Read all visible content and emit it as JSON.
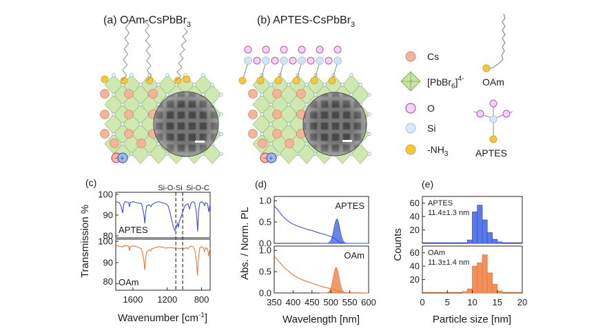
{
  "top": {
    "panel_a_title": "(a) OAm-CsPbBr",
    "panel_a_sub": "3",
    "panel_b_title": "(b) APTES-CsPbBr",
    "panel_b_sub": "3"
  },
  "legend": {
    "cs": "Cs",
    "pbbr_main": "[PbBr",
    "pbbr_sub": "6",
    "pbbr_close": "]",
    "pbbr_sup": "4-",
    "o": "O",
    "si": "Si",
    "nh3_main": "-NH",
    "nh3_sub": "3",
    "oam": "OAm",
    "aptes": "APTES"
  },
  "colors": {
    "blue": "#3b4fd8",
    "orange": "#e8773a",
    "blue_fill": "#5b79e8",
    "orange_fill": "#f0905a",
    "cs_atom": "#f2b49a",
    "octahedron": "#c7e3a3",
    "o_atom": "#e7a6e0",
    "si_atom": "#cfe4f2",
    "n_atom": "#f6c640"
  },
  "chart_data": [
    {
      "type": "line",
      "panel": "(c)",
      "xlabel_main": "Wavenumber [cm",
      "xlabel_sup": "-1",
      "xlabel_close": "]",
      "ylabel": "Transmission %",
      "x_reversed": true,
      "xlim": [
        1800,
        700
      ],
      "xticks": [
        1600,
        1200,
        800
      ],
      "xtick_labels": [
        "1600",
        "1200",
        "800"
      ],
      "annotations": [
        "Si-O-Si",
        "Si-O-C"
      ],
      "annotation_x": [
        1100,
        1020
      ],
      "series": [
        {
          "name": "APTES",
          "color": "#3b4fd8",
          "ylim": [
            79,
            101
          ],
          "yticks": [
            "100",
            "90",
            "80"
          ],
          "ytick_values": [
            100,
            90,
            80
          ],
          "points": [
            [
              1800,
              96.5
            ],
            [
              1760,
              96.0
            ],
            [
              1740,
              94.5
            ],
            [
              1720,
              91.0
            ],
            [
              1705,
              95.5
            ],
            [
              1690,
              96.5
            ],
            [
              1650,
              96.0
            ],
            [
              1640,
              94.0
            ],
            [
              1632,
              96.0
            ],
            [
              1600,
              96.5
            ],
            [
              1560,
              96.0
            ],
            [
              1500,
              95.5
            ],
            [
              1480,
              92.0
            ],
            [
              1470,
              89.5
            ],
            [
              1462,
              86.0
            ],
            [
              1455,
              90.0
            ],
            [
              1440,
              94.5
            ],
            [
              1410,
              95.0
            ],
            [
              1390,
              94.0
            ],
            [
              1380,
              95.0
            ],
            [
              1340,
              96.0
            ],
            [
              1300,
              96.5
            ],
            [
              1260,
              96.0
            ],
            [
              1220,
              95.5
            ],
            [
              1190,
              94.5
            ],
            [
              1170,
              91.5
            ],
            [
              1150,
              88.0
            ],
            [
              1130,
              84.5
            ],
            [
              1112,
              82.5
            ],
            [
              1100,
              83.5
            ],
            [
              1080,
              86.0
            ],
            [
              1070,
              84.0
            ],
            [
              1060,
              87.0
            ],
            [
              1040,
              89.0
            ],
            [
              1020,
              91.5
            ],
            [
              1000,
              94.0
            ],
            [
              980,
              95.0
            ],
            [
              960,
              95.5
            ],
            [
              940,
              93.0
            ],
            [
              920,
              96.0
            ],
            [
              900,
              96.5
            ],
            [
              880,
              96.0
            ],
            [
              860,
              91.0
            ],
            [
              845,
              82.0
            ],
            [
              835,
              92.0
            ],
            [
              820,
              96.0
            ],
            [
              800,
              96.5
            ],
            [
              780,
              96.0
            ],
            [
              765,
              94.5
            ],
            [
              755,
              96.0
            ],
            [
              730,
              95.5
            ],
            [
              715,
              91.5
            ],
            [
              700,
              95.5
            ]
          ]
        },
        {
          "name": "OAm",
          "color": "#e8773a",
          "ylim": [
            77,
            101
          ],
          "yticks": [
            "100",
            "90",
            "80"
          ],
          "ytick_values": [
            100,
            90,
            80
          ],
          "points": [
            [
              1800,
              98.0
            ],
            [
              1760,
              97.8
            ],
            [
              1720,
              97.3
            ],
            [
              1705,
              98.0
            ],
            [
              1650,
              97.8
            ],
            [
              1640,
              95.5
            ],
            [
              1632,
              97.5
            ],
            [
              1600,
              97.8
            ],
            [
              1560,
              97.5
            ],
            [
              1500,
              96.5
            ],
            [
              1480,
              93.0
            ],
            [
              1470,
              90.0
            ],
            [
              1462,
              86.5
            ],
            [
              1455,
              91.0
            ],
            [
              1440,
              95.0
            ],
            [
              1410,
              96.0
            ],
            [
              1390,
              95.5
            ],
            [
              1380,
              96.5
            ],
            [
              1340,
              97.0
            ],
            [
              1300,
              97.5
            ],
            [
              1260,
              97.3
            ],
            [
              1220,
              96.8
            ],
            [
              1190,
              97.0
            ],
            [
              1150,
              97.0
            ],
            [
              1120,
              96.8
            ],
            [
              1080,
              96.8
            ],
            [
              1050,
              96.5
            ],
            [
              1020,
              96.8
            ],
            [
              1000,
              96.5
            ],
            [
              980,
              97.0
            ],
            [
              960,
              96.5
            ],
            [
              940,
              97.5
            ],
            [
              920,
              97.8
            ],
            [
              900,
              97.5
            ],
            [
              880,
              96.0
            ],
            [
              860,
              91.0
            ],
            [
              848,
              84.0
            ],
            [
              835,
              92.5
            ],
            [
              820,
              97.0
            ],
            [
              800,
              97.5
            ],
            [
              780,
              97.0
            ],
            [
              765,
              95.0
            ],
            [
              755,
              97.0
            ],
            [
              730,
              96.5
            ],
            [
              718,
              93.0
            ],
            [
              700,
              97.0
            ]
          ]
        }
      ]
    },
    {
      "type": "line",
      "panel": "(d)",
      "xlabel": "Wavelength [nm]",
      "ylabel": "Abs. / Norm. PL",
      "xlim": [
        350,
        600
      ],
      "xticks": [
        350,
        400,
        450,
        500,
        550,
        600
      ],
      "xtick_labels": [
        "350",
        "400",
        "450",
        "500",
        "550",
        "600"
      ],
      "subplots": [
        {
          "name": "APTES",
          "color": "#3b4fd8",
          "fill": "#5b79e8",
          "ylim": [
            0,
            1.1
          ],
          "yticks": [
            "1.0",
            "0.5",
            "0.0"
          ],
          "ytick_values": [
            1.0,
            0.5,
            0.0
          ],
          "absorbance": [
            [
              350,
              0.88
            ],
            [
              360,
              0.78
            ],
            [
              370,
              0.66
            ],
            [
              380,
              0.57
            ],
            [
              390,
              0.5
            ],
            [
              400,
              0.45
            ],
            [
              410,
              0.41
            ],
            [
              420,
              0.38
            ],
            [
              430,
              0.35
            ],
            [
              440,
              0.32
            ],
            [
              450,
              0.3
            ],
            [
              460,
              0.27
            ],
            [
              470,
              0.24
            ],
            [
              480,
              0.22
            ],
            [
              490,
              0.19
            ],
            [
              500,
              0.16
            ],
            [
              505,
              0.14
            ],
            [
              510,
              0.12
            ],
            [
              515,
              0.08
            ],
            [
              520,
              0.04
            ],
            [
              530,
              0.01
            ],
            [
              540,
              0.0
            ],
            [
              600,
              0.0
            ]
          ],
          "pl_peak": 516,
          "pl_fwhm": 18,
          "pl_max": 0.57
        },
        {
          "name": "OAm",
          "color": "#e8773a",
          "fill": "#f0905a",
          "ylim": [
            0,
            1.1
          ],
          "yticks": [
            "1.0",
            "0.5",
            "0.0"
          ],
          "ytick_values": [
            1.0,
            0.5,
            0.0
          ],
          "absorbance": [
            [
              350,
              0.87
            ],
            [
              360,
              0.76
            ],
            [
              370,
              0.66
            ],
            [
              380,
              0.57
            ],
            [
              390,
              0.49
            ],
            [
              400,
              0.42
            ],
            [
              410,
              0.37
            ],
            [
              420,
              0.33
            ],
            [
              430,
              0.29
            ],
            [
              440,
              0.26
            ],
            [
              450,
              0.23
            ],
            [
              460,
              0.2
            ],
            [
              470,
              0.17
            ],
            [
              480,
              0.14
            ],
            [
              490,
              0.12
            ],
            [
              500,
              0.1
            ],
            [
              505,
              0.09
            ],
            [
              510,
              0.08
            ],
            [
              515,
              0.06
            ],
            [
              520,
              0.04
            ],
            [
              530,
              0.02
            ],
            [
              540,
              0.01
            ],
            [
              600,
              0.0
            ]
          ],
          "pl_peak": 514,
          "pl_fwhm": 18,
          "pl_max": 0.6
        }
      ]
    },
    {
      "type": "bar",
      "panel": "(e)",
      "xlabel": "Particle size [nm]",
      "ylabel": "Counts",
      "xlim": [
        0,
        20
      ],
      "xticks": [
        0,
        5,
        10,
        15,
        20
      ],
      "xtick_labels": [
        "0",
        "5",
        "10",
        "15",
        "20"
      ],
      "bin_width": 1,
      "subplots": [
        {
          "name": "APTES",
          "label": "APTES",
          "stat": "11.4±1.3 nm",
          "color": "#5b79e8",
          "edge": "#3b4fd8",
          "ylim": [
            0,
            70
          ],
          "yticks": [
            "60",
            "40",
            "20"
          ],
          "ytick_values": [
            60,
            40,
            20
          ],
          "bin_starts": [
            9,
            10,
            11,
            12,
            13,
            14,
            15
          ],
          "counts": [
            5,
            47,
            57,
            35,
            16,
            6,
            2
          ]
        },
        {
          "name": "OAm",
          "label": "OAm",
          "stat": "11.3±1.4 nm",
          "color": "#f0905a",
          "edge": "#e8773a",
          "ylim": [
            0,
            70
          ],
          "yticks": [
            "60",
            "40",
            "20"
          ],
          "ytick_values": [
            60,
            40,
            20
          ],
          "bin_starts": [
            8,
            9,
            10,
            11,
            12,
            13,
            14,
            15
          ],
          "counts": [
            2,
            6,
            40,
            45,
            57,
            30,
            13,
            3
          ]
        }
      ]
    }
  ]
}
